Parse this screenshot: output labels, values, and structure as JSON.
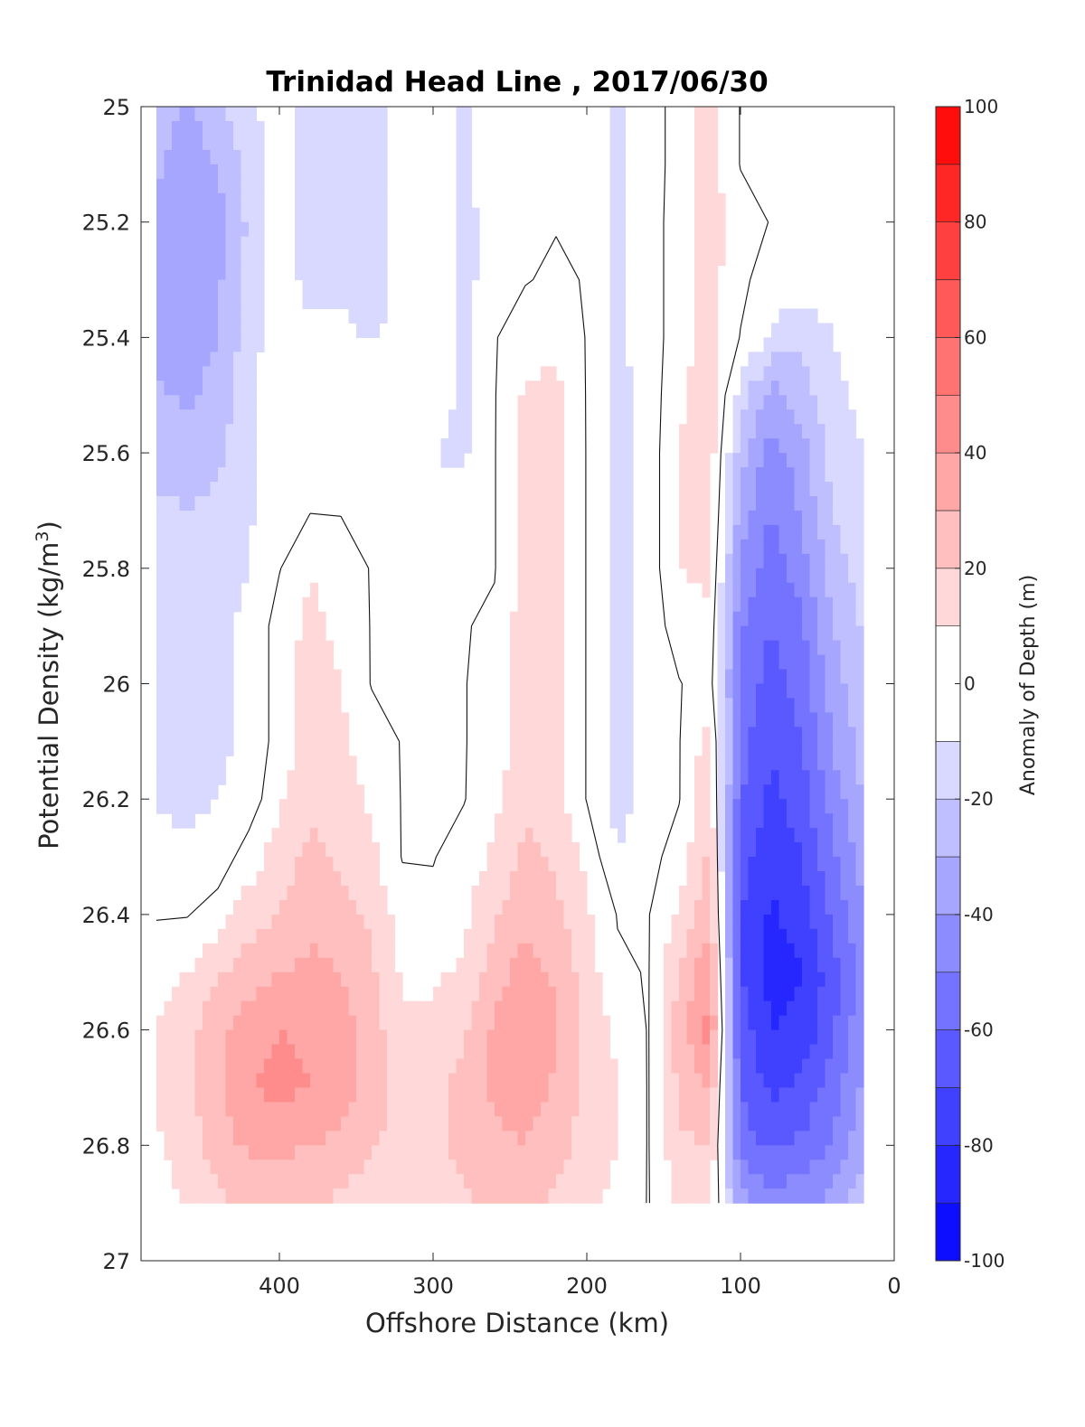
{
  "chart_data": {
    "type": "filled-contour",
    "title": "Trinidad Head Line , 2017/06/30",
    "xlabel": "Offshore Distance (km)",
    "ylabel_main": "Potential Density (kg/m",
    "ylabel_sup": "3",
    "ylabel_close": ")",
    "colorbar_label": "Anomaly of Depth (m)",
    "x_ticks": [
      "400",
      "300",
      "200",
      "100",
      "0"
    ],
    "x_tick_values": [
      400,
      300,
      200,
      100,
      0
    ],
    "y_ticks": [
      "25",
      "25.2",
      "25.4",
      "25.6",
      "25.8",
      "26",
      "26.2",
      "26.4",
      "26.6",
      "26.8",
      "27"
    ],
    "y_tick_values": [
      25,
      25.2,
      25.4,
      25.6,
      25.8,
      26,
      26.2,
      26.4,
      26.6,
      26.8,
      27
    ],
    "xlim": [
      490,
      0
    ],
    "x_reversed": true,
    "ylim": [
      25,
      27
    ],
    "y_reversed": true,
    "colorbar_ticks": [
      "100",
      "80",
      "60",
      "40",
      "20",
      "0",
      "-20",
      "-40",
      "-60",
      "-80",
      "-100"
    ],
    "colorbar_tick_values": [
      100,
      80,
      60,
      40,
      20,
      0,
      -20,
      -40,
      -60,
      -80,
      -100
    ],
    "clim": [
      -100,
      100
    ],
    "contour_levels": [
      -100,
      -90,
      -80,
      -70,
      -60,
      -50,
      -40,
      -30,
      -20,
      -10,
      10,
      20,
      30,
      40,
      50,
      60,
      70,
      80,
      90,
      100
    ],
    "data_extent": {
      "x": [
        20,
        480
      ],
      "y": [
        25,
        26.9
      ]
    },
    "grid_x_km": [
      480,
      460,
      440,
      420,
      400,
      380,
      360,
      340,
      320,
      300,
      280,
      260,
      240,
      220,
      200,
      180,
      160,
      140,
      120,
      100,
      80,
      60,
      40,
      20
    ],
    "grid_y_density": [
      25.0,
      25.1,
      25.2,
      25.3,
      25.4,
      25.5,
      25.6,
      25.7,
      25.8,
      25.9,
      26.0,
      26.1,
      26.2,
      26.3,
      26.4,
      26.5,
      26.6,
      26.7,
      26.8,
      26.9
    ],
    "anomaly_m": [
      [
        -25,
        -32,
        -22,
        -12,
        -5,
        -14,
        -15,
        -14,
        -5,
        0,
        -14,
        -2,
        0,
        0,
        0,
        -12,
        -5,
        5,
        15,
        0,
        0,
        0,
        0,
        0
      ],
      [
        -28,
        -35,
        -30,
        -15,
        -5,
        -15,
        -16,
        -15,
        -5,
        0,
        -14,
        -2,
        0,
        0,
        0,
        -12,
        -5,
        5,
        15,
        0,
        0,
        0,
        0,
        0
      ],
      [
        -32,
        -38,
        -35,
        -18,
        -3,
        -16,
        -17,
        -15,
        -5,
        0,
        -15,
        -2,
        0,
        0,
        0,
        -12,
        -5,
        6,
        14,
        5,
        0,
        0,
        0,
        0
      ],
      [
        -35,
        -40,
        -32,
        -18,
        -3,
        -15,
        -16,
        -15,
        -5,
        0,
        -15,
        -2,
        0,
        2,
        0,
        -12,
        -5,
        6,
        14,
        3,
        -5,
        -5,
        -5,
        -5
      ],
      [
        -32,
        -38,
        -30,
        -15,
        -2,
        -5,
        -5,
        -12,
        -5,
        0,
        -14,
        0,
        5,
        8,
        0,
        -12,
        -5,
        6,
        14,
        0,
        -12,
        -18,
        -10,
        -5
      ],
      [
        -28,
        -32,
        -25,
        -15,
        0,
        0,
        0,
        0,
        -5,
        -5,
        -12,
        0,
        12,
        12,
        0,
        -14,
        -5,
        8,
        16,
        -15,
        -35,
        -25,
        -12,
        -8
      ],
      [
        -25,
        -25,
        -22,
        -12,
        0,
        0,
        0,
        0,
        0,
        -10,
        -12,
        0,
        15,
        15,
        0,
        -15,
        -5,
        10,
        15,
        -25,
        -45,
        -35,
        -15,
        -10
      ],
      [
        -18,
        -20,
        -18,
        -12,
        0,
        0,
        0,
        0,
        0,
        -5,
        -5,
        0,
        15,
        15,
        0,
        -15,
        -5,
        10,
        15,
        -35,
        -50,
        -38,
        -20,
        -12
      ],
      [
        -15,
        -15,
        -15,
        -10,
        0,
        10,
        5,
        0,
        0,
        0,
        0,
        0,
        15,
        15,
        0,
        -15,
        -5,
        10,
        12,
        -42,
        -55,
        -45,
        -25,
        -15
      ],
      [
        -15,
        -15,
        -12,
        -8,
        5,
        12,
        8,
        0,
        0,
        0,
        0,
        2,
        15,
        15,
        0,
        -15,
        -5,
        5,
        8,
        -48,
        -60,
        -52,
        -30,
        -18
      ],
      [
        -15,
        -15,
        -12,
        -8,
        5,
        15,
        10,
        0,
        0,
        0,
        0,
        5,
        15,
        15,
        0,
        -15,
        -5,
        0,
        5,
        -52,
        -65,
        -55,
        -35,
        -22
      ],
      [
        -15,
        -15,
        -12,
        -8,
        5,
        15,
        12,
        5,
        0,
        0,
        0,
        5,
        15,
        15,
        0,
        -15,
        -5,
        0,
        15,
        -55,
        -70,
        -60,
        -40,
        -25
      ],
      [
        -12,
        -12,
        -10,
        -5,
        8,
        18,
        15,
        8,
        0,
        0,
        0,
        8,
        18,
        15,
        0,
        -15,
        -5,
        0,
        18,
        -60,
        -72,
        -65,
        -45,
        -30
      ],
      [
        -5,
        -8,
        -5,
        5,
        15,
        22,
        18,
        12,
        0,
        0,
        5,
        12,
        22,
        18,
        8,
        -10,
        -3,
        5,
        22,
        -65,
        -78,
        -70,
        -52,
        -35
      ],
      [
        0,
        0,
        5,
        15,
        20,
        28,
        25,
        18,
        5,
        3,
        8,
        18,
        28,
        22,
        12,
        0,
        0,
        12,
        28,
        -70,
        -82,
        -75,
        -58,
        -40
      ],
      [
        5,
        10,
        18,
        25,
        30,
        32,
        30,
        22,
        8,
        8,
        12,
        25,
        35,
        28,
        15,
        2,
        0,
        20,
        38,
        -70,
        -85,
        -80,
        -65,
        -45
      ],
      [
        10,
        15,
        28,
        35,
        40,
        38,
        35,
        25,
        12,
        12,
        18,
        32,
        38,
        32,
        18,
        8,
        0,
        25,
        45,
        -65,
        -80,
        -78,
        -62,
        -42
      ],
      [
        12,
        18,
        28,
        40,
        42,
        40,
        35,
        25,
        15,
        15,
        25,
        32,
        35,
        28,
        18,
        10,
        0,
        22,
        30,
        -60,
        -72,
        -68,
        -55,
        -38
      ],
      [
        8,
        15,
        25,
        32,
        32,
        30,
        28,
        22,
        15,
        18,
        22,
        28,
        30,
        25,
        15,
        10,
        0,
        18,
        20,
        -55,
        -62,
        -58,
        -48,
        -32
      ],
      [
        5,
        12,
        18,
        22,
        22,
        20,
        18,
        12,
        10,
        15,
        18,
        22,
        22,
        18,
        12,
        8,
        0,
        12,
        15,
        -35,
        -45,
        -42,
        -38,
        -22
      ]
    ]
  }
}
